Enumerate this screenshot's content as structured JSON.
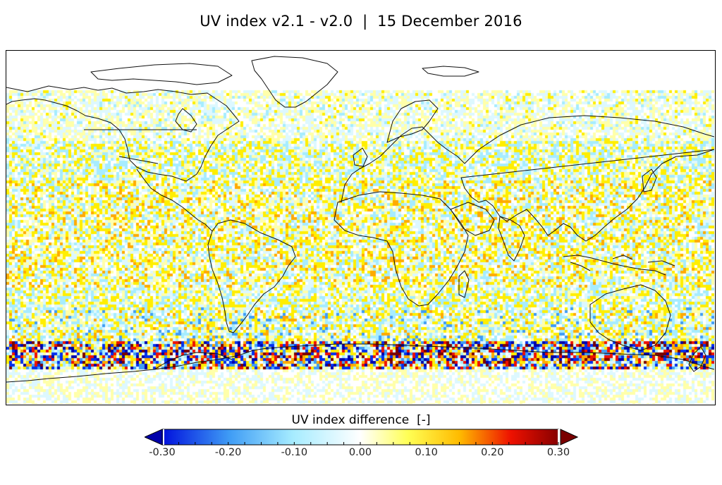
{
  "title": "UV index v2.1 - v2.0  |  15 December 2016",
  "map": {
    "projection": "plate-carree",
    "lon_range": [
      -180,
      180
    ],
    "lat_range": [
      -90,
      90
    ]
  },
  "colorbar": {
    "label": "UV index difference  [-]",
    "min": -0.3,
    "max": 0.3,
    "extend": "both",
    "tick_labels": [
      "-0.30",
      "-0.20",
      "-0.10",
      "0.00",
      "0.10",
      "0.20",
      "0.30"
    ],
    "tick_values": [
      -0.3,
      -0.2,
      -0.1,
      0.0,
      0.1,
      0.2,
      0.3
    ],
    "colors": {
      "under": "#0000aa",
      "low": "#0010dd",
      "mid_low": "#3f9cf5",
      "light_low": "#a6ecff",
      "zero": "#ffffff",
      "light_high": "#ffff66",
      "mid_high": "#ffbb00",
      "high": "#ee1100",
      "over": "#7a0000"
    }
  }
}
